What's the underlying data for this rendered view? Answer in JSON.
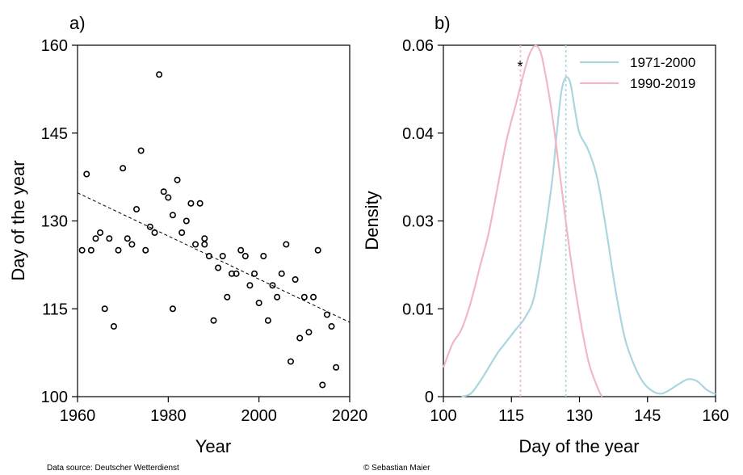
{
  "chart_data": [
    {
      "type": "scatter",
      "panel_label": "a)",
      "xlabel": "Year",
      "ylabel": "Day of the year",
      "xlim": [
        1960,
        2020
      ],
      "ylim": [
        100,
        160
      ],
      "xticks": [
        "1960",
        "1980",
        "2000",
        "2020"
      ],
      "yticks": [
        "100",
        "115",
        "130",
        "145",
        "160"
      ],
      "points": [
        [
          1961,
          125
        ],
        [
          1962,
          138
        ],
        [
          1963,
          125
        ],
        [
          1964,
          127
        ],
        [
          1965,
          128
        ],
        [
          1966,
          115
        ],
        [
          1967,
          127
        ],
        [
          1968,
          112
        ],
        [
          1969,
          125
        ],
        [
          1970,
          139
        ],
        [
          1971,
          127
        ],
        [
          1972,
          126
        ],
        [
          1973,
          132
        ],
        [
          1974,
          142
        ],
        [
          1975,
          125
        ],
        [
          1976,
          129
        ],
        [
          1977,
          128
        ],
        [
          1978,
          155
        ],
        [
          1979,
          135
        ],
        [
          1980,
          134
        ],
        [
          1981,
          131
        ],
        [
          1981,
          115
        ],
        [
          1982,
          137
        ],
        [
          1983,
          128
        ],
        [
          1984,
          130
        ],
        [
          1985,
          133
        ],
        [
          1986,
          126
        ],
        [
          1987,
          133
        ],
        [
          1988,
          126
        ],
        [
          1988,
          127
        ],
        [
          1989,
          124
        ],
        [
          1990,
          113
        ],
        [
          1991,
          122
        ],
        [
          1992,
          124
        ],
        [
          1993,
          117
        ],
        [
          1994,
          121
        ],
        [
          1995,
          121
        ],
        [
          1996,
          125
        ],
        [
          1997,
          124
        ],
        [
          1998,
          119
        ],
        [
          1999,
          121
        ],
        [
          2000,
          116
        ],
        [
          2001,
          124
        ],
        [
          2002,
          113
        ],
        [
          2003,
          119
        ],
        [
          2004,
          117
        ],
        [
          2005,
          121
        ],
        [
          2006,
          126
        ],
        [
          2007,
          106
        ],
        [
          2008,
          120
        ],
        [
          2009,
          110
        ],
        [
          2010,
          117
        ],
        [
          2011,
          111
        ],
        [
          2012,
          117
        ],
        [
          2013,
          125
        ],
        [
          2014,
          102
        ],
        [
          2015,
          114
        ],
        [
          2016,
          112
        ],
        [
          2017,
          105
        ]
      ],
      "trendline": {
        "x": [
          1960,
          2020
        ],
        "y": [
          134.8,
          112.7
        ]
      }
    },
    {
      "type": "line",
      "panel_label": "b)",
      "xlabel": "Day of the year",
      "ylabel": "Density",
      "xlim": [
        100,
        160
      ],
      "ylim": [
        0,
        0.06
      ],
      "xticks": [
        "100",
        "115",
        "130",
        "145",
        "160"
      ],
      "yticks": [
        "0",
        "0.01",
        "0.03",
        "0.04",
        "0.06"
      ],
      "legend_position": "top-right",
      "annotation": "*",
      "series": [
        {
          "name": "1971-2000",
          "color": "#a9d6df",
          "mean": 127,
          "points": [
            [
              104,
              0
            ],
            [
              106,
              0.0005
            ],
            [
              108,
              0.0025
            ],
            [
              110,
              0.005
            ],
            [
              112,
              0.0075
            ],
            [
              114,
              0.0095
            ],
            [
              116,
              0.0115
            ],
            [
              118,
              0.0135
            ],
            [
              120,
              0.017
            ],
            [
              122,
              0.026
            ],
            [
              124,
              0.037
            ],
            [
              125,
              0.045
            ],
            [
              126,
              0.052
            ],
            [
              127,
              0.0545
            ],
            [
              128,
              0.0535
            ],
            [
              129,
              0.049
            ],
            [
              130,
              0.045
            ],
            [
              132,
              0.042
            ],
            [
              134,
              0.037
            ],
            [
              136,
              0.028
            ],
            [
              138,
              0.018
            ],
            [
              140,
              0.01
            ],
            [
              142,
              0.0055
            ],
            [
              144,
              0.0025
            ],
            [
              146,
              0.001
            ],
            [
              148,
              0.0005
            ],
            [
              150,
              0.0012
            ],
            [
              152,
              0.0022
            ],
            [
              154,
              0.003
            ],
            [
              156,
              0.0026
            ],
            [
              158,
              0.0012
            ],
            [
              160,
              0.0004
            ]
          ]
        },
        {
          "name": "1990-2019",
          "color": "#f0b8c6",
          "mean": 117,
          "points": [
            [
              100,
              0.005
            ],
            [
              102,
              0.009
            ],
            [
              104,
              0.0115
            ],
            [
              106,
              0.016
            ],
            [
              108,
              0.022
            ],
            [
              110,
              0.028
            ],
            [
              112,
              0.036
            ],
            [
              114,
              0.044
            ],
            [
              116,
              0.05
            ],
            [
              118,
              0.056
            ],
            [
              119,
              0.0585
            ],
            [
              120,
              0.0598
            ],
            [
              121,
              0.0595
            ],
            [
              122,
              0.057
            ],
            [
              124,
              0.048
            ],
            [
              126,
              0.036
            ],
            [
              128,
              0.024
            ],
            [
              130,
              0.014
            ],
            [
              132,
              0.006
            ],
            [
              134,
              0.0015
            ],
            [
              135,
              0
            ]
          ]
        }
      ]
    }
  ],
  "footer": {
    "source": "Data source: Deutscher Wetterdienst",
    "credit": "© Sebastian Maier"
  }
}
